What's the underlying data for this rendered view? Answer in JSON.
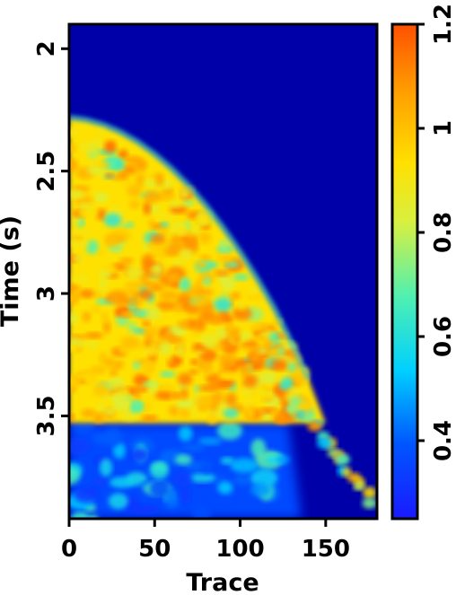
{
  "chart_data": {
    "type": "heatmap",
    "title": "",
    "xlabel": "Trace",
    "ylabel": "Time (s)",
    "xlim": [
      0,
      180
    ],
    "ylim": [
      3.92,
      1.9
    ],
    "y_inverted": true,
    "xticks": [
      {
        "value": 0,
        "label": "0"
      },
      {
        "value": 50,
        "label": "50"
      },
      {
        "value": 100,
        "label": "100"
      },
      {
        "value": 150,
        "label": "150"
      }
    ],
    "yticks": [
      {
        "value": 2.0,
        "label": "2"
      },
      {
        "value": 2.5,
        "label": "2.5"
      },
      {
        "value": 3.0,
        "label": "3"
      },
      {
        "value": 3.5,
        "label": "3.5"
      }
    ],
    "colorbar": {
      "range": [
        0.25,
        1.2
      ],
      "colormap": "jet",
      "ticks": [
        {
          "value": 0.4,
          "label": "0.4"
        },
        {
          "value": 0.6,
          "label": "0.6"
        },
        {
          "value": 0.8,
          "label": "0.8"
        },
        {
          "value": 1.0,
          "label": "1"
        },
        {
          "value": 1.2,
          "label": "1.2"
        }
      ]
    },
    "background_value": 0.27,
    "regions": [
      {
        "name": "high-amplitude-zone",
        "value_range": [
          0.85,
          1.15
        ],
        "boundary_trace": [
          0,
          10,
          20,
          30,
          40,
          50,
          60,
          70,
          80,
          90,
          100,
          110,
          120,
          130,
          140
        ],
        "boundary_top_time": [
          2.28,
          2.29,
          2.31,
          2.34,
          2.38,
          2.43,
          2.49,
          2.56,
          2.64,
          2.73,
          2.83,
          2.94,
          3.06,
          3.2,
          3.35
        ],
        "bottom_time": 3.53
      },
      {
        "name": "low-amplitude-zone",
        "value_range": [
          0.3,
          0.55
        ],
        "time_range": [
          3.53,
          3.92
        ],
        "trace_range": [
          0,
          128
        ]
      },
      {
        "name": "diagonal-streak",
        "value_range": [
          0.5,
          1.1
        ],
        "from": {
          "trace": 125,
          "time": 3.35
        },
        "to": {
          "trace": 175,
          "time": 3.85
        }
      }
    ]
  }
}
